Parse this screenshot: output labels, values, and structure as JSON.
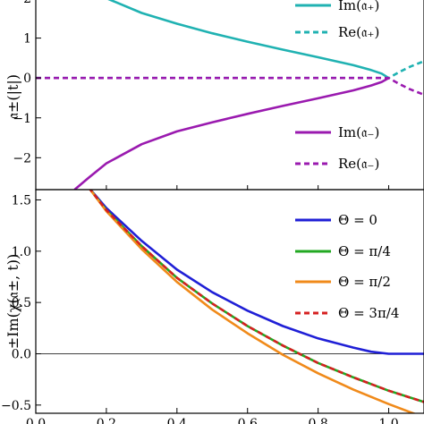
{
  "chart_data": [
    {
      "type": "line",
      "ylabel": "𝔞±(|t|)",
      "ylim": [
        -2.8,
        2.0
      ],
      "xlim": [
        0.0,
        1.1
      ],
      "yticks": [
        "−2",
        "−1",
        "0",
        "1",
        "2"
      ],
      "ytick_values": [
        -2,
        -1,
        0,
        1,
        2
      ],
      "grid": false,
      "legend_position": "right",
      "legend": [
        {
          "label": "Im(𝔞₊)",
          "series": "Im_a_plus"
        },
        {
          "label": "Re(𝔞₊)",
          "series": "Re_a_plus"
        },
        {
          "label": "Im(𝔞₋)",
          "series": "Im_a_minus"
        },
        {
          "label": "Re(𝔞₋)",
          "series": "Re_a_minus"
        }
      ],
      "series": [
        {
          "name": "Im(𝔞₊)",
          "key": "Im_a_plus",
          "color": "#20b2b2",
          "style": "solid",
          "x": [
            0.2,
            0.3,
            0.4,
            0.5,
            0.6,
            0.7,
            0.8,
            0.9,
            0.95,
            0.98,
            1.0
          ],
          "y": [
            2.0,
            1.63,
            1.36,
            1.12,
            0.91,
            0.71,
            0.52,
            0.32,
            0.2,
            0.11,
            0.0
          ]
        },
        {
          "name": "Re(𝔞₊)",
          "key": "Re_a_plus",
          "color": "#20b2b2",
          "style": "dashed",
          "x": [
            0.0,
            0.5,
            1.0,
            1.03,
            1.06,
            1.1
          ],
          "y": [
            0.0,
            0.0,
            0.0,
            0.15,
            0.28,
            0.42
          ]
        },
        {
          "name": "Im(𝔞₋)",
          "key": "Im_a_minus",
          "color": "#9a1aaf",
          "style": "solid",
          "x": [
            0.11,
            0.15,
            0.2,
            0.3,
            0.4,
            0.5,
            0.6,
            0.7,
            0.8,
            0.9,
            0.95,
            0.98,
            1.0
          ],
          "y": [
            -2.8,
            -2.5,
            -2.14,
            -1.66,
            -1.34,
            -1.11,
            -0.9,
            -0.7,
            -0.51,
            -0.31,
            -0.19,
            -0.1,
            0.0
          ]
        },
        {
          "name": "Re(𝔞₋)",
          "key": "Re_a_minus",
          "color": "#9a1aaf",
          "style": "dashed",
          "x": [
            0.0,
            0.5,
            1.0,
            1.03,
            1.06,
            1.1
          ],
          "y": [
            0.0,
            0.0,
            0.0,
            -0.15,
            -0.28,
            -0.42
          ]
        }
      ]
    },
    {
      "type": "line",
      "ylabel": "±Im(χ(𝔞±, t))",
      "xlabel": "",
      "xlim": [
        0.0,
        1.1
      ],
      "ylim": [
        -0.58,
        1.6
      ],
      "xticks": [
        "0.0",
        "0.2",
        "0.4",
        "0.6",
        "0.8",
        "1.0"
      ],
      "xtick_values": [
        0.0,
        0.2,
        0.4,
        0.6,
        0.8,
        1.0
      ],
      "yticks": [
        "−0.5",
        "0.0",
        "0.5",
        "1.0",
        "1.5"
      ],
      "ytick_values": [
        -0.5,
        0.0,
        0.5,
        1.0,
        1.5
      ],
      "grid": false,
      "legend_position": "top-right",
      "reference_line_y": 0.0,
      "legend": [
        {
          "label": "Θ = 0",
          "series": "theta_0"
        },
        {
          "label": "Θ = π/4",
          "series": "theta_pi4"
        },
        {
          "label": "Θ = π/2",
          "series": "theta_pi2"
        },
        {
          "label": "Θ = 3π/4",
          "series": "theta_3pi4"
        }
      ],
      "series": [
        {
          "name": "Θ = 0",
          "key": "theta_0",
          "color": "#1f1fd6",
          "style": "solid",
          "x": [
            0.15,
            0.2,
            0.3,
            0.4,
            0.5,
            0.6,
            0.7,
            0.8,
            0.9,
            0.95,
            1.0,
            1.1
          ],
          "y": [
            1.62,
            1.42,
            1.1,
            0.82,
            0.6,
            0.42,
            0.27,
            0.15,
            0.06,
            0.02,
            0.0,
            0.0
          ]
        },
        {
          "name": "Θ = π/4",
          "key": "theta_pi4",
          "color": "#22a822",
          "style": "solid",
          "x": [
            0.15,
            0.2,
            0.3,
            0.4,
            0.5,
            0.6,
            0.7,
            0.8,
            0.9,
            1.0,
            1.1
          ],
          "y": [
            1.62,
            1.4,
            1.05,
            0.74,
            0.49,
            0.27,
            0.08,
            -0.09,
            -0.23,
            -0.36,
            -0.47
          ]
        },
        {
          "name": "Θ = π/2",
          "key": "theta_pi2",
          "color": "#f08a1a",
          "style": "solid",
          "x": [
            0.15,
            0.2,
            0.3,
            0.4,
            0.5,
            0.6,
            0.7,
            0.8,
            0.9,
            1.0,
            1.1
          ],
          "y": [
            1.62,
            1.39,
            1.02,
            0.7,
            0.43,
            0.2,
            -0.01,
            -0.19,
            -0.35,
            -0.49,
            -0.62
          ]
        },
        {
          "name": "Θ = 3π/4",
          "key": "theta_3pi4",
          "color": "#d62020",
          "style": "dashed",
          "x": [
            0.15,
            0.2,
            0.3,
            0.4,
            0.5,
            0.6,
            0.7,
            0.8,
            0.9,
            1.0,
            1.1
          ],
          "y": [
            1.62,
            1.4,
            1.05,
            0.74,
            0.49,
            0.27,
            0.08,
            -0.09,
            -0.23,
            -0.36,
            -0.47
          ]
        }
      ]
    }
  ]
}
